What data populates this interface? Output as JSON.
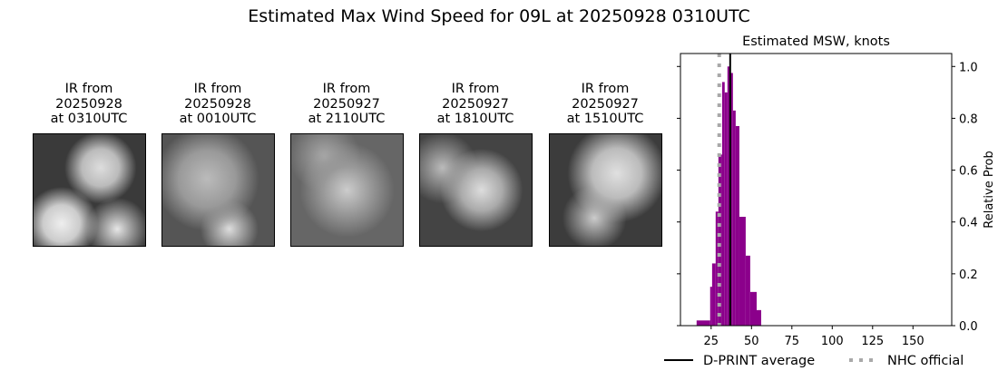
{
  "title": "Estimated Max Wind Speed for 09L at 20250928 0310UTC",
  "panels": [
    {
      "line1": "IR from",
      "line2": "20250928",
      "line3": "at 0310UTC"
    },
    {
      "line1": "IR from",
      "line2": "20250928",
      "line3": "at 0010UTC"
    },
    {
      "line1": "IR from",
      "line2": "20250927",
      "line3": "at 2110UTC"
    },
    {
      "line1": "IR from",
      "line2": "20250927",
      "line3": "at 1810UTC"
    },
    {
      "line1": "IR from",
      "line2": "20250927",
      "line3": "at 1510UTC"
    }
  ],
  "chart_data": {
    "type": "bar",
    "title": "Estimated MSW, knots",
    "xlabel": "",
    "ylabel": "Relative Prob",
    "xlim": [
      6,
      174
    ],
    "ylim": [
      0,
      1.05
    ],
    "xticks": [
      25,
      50,
      75,
      100,
      125,
      150
    ],
    "yticks": [
      0.0,
      0.2,
      0.4,
      0.6,
      0.8,
      1.0
    ],
    "ytick_side": "right",
    "grid": false,
    "bar_color": "#8b008b",
    "bins": [
      {
        "from": 16,
        "to": 24.4,
        "value": 0.02
      },
      {
        "from": 24.4,
        "to": 25.6,
        "value": 0.15
      },
      {
        "from": 25.6,
        "to": 27.8,
        "value": 0.24
      },
      {
        "from": 27.8,
        "to": 29.5,
        "value": 0.44
      },
      {
        "from": 29.5,
        "to": 31.8,
        "value": 0.66
      },
      {
        "from": 31.8,
        "to": 33.4,
        "value": 0.94
      },
      {
        "from": 33.4,
        "to": 35.1,
        "value": 0.9
      },
      {
        "from": 35.1,
        "to": 36.3,
        "value": 1.0
      },
      {
        "from": 36.3,
        "to": 38.5,
        "value": 0.975
      },
      {
        "from": 38.5,
        "to": 40.2,
        "value": 0.83
      },
      {
        "from": 40.2,
        "to": 42.5,
        "value": 0.77
      },
      {
        "from": 42.5,
        "to": 46.4,
        "value": 0.42
      },
      {
        "from": 46.4,
        "to": 49.2,
        "value": 0.27
      },
      {
        "from": 49.2,
        "to": 53.2,
        "value": 0.13
      },
      {
        "from": 53.2,
        "to": 56,
        "value": 0.06
      }
    ],
    "lines": [
      {
        "name": "D-PRINT average",
        "x": 36.8,
        "color": "#000000",
        "style": "solid"
      },
      {
        "name": "NHC official",
        "x": 30,
        "color": "#a9a9a9",
        "style": "dotted"
      }
    ],
    "legend": "bottom"
  }
}
